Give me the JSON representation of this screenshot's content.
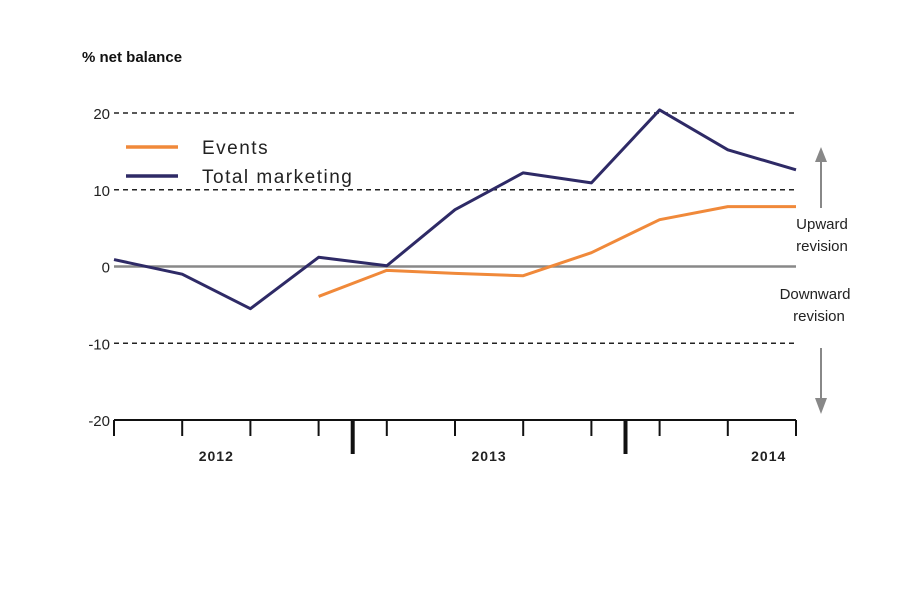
{
  "chart_data": {
    "type": "line",
    "ylabel": "% net balance",
    "ylim": [
      -20,
      20
    ],
    "yticks": [
      20,
      10,
      0,
      -10,
      -20
    ],
    "grid": "dashed horizontal at ±10 and ±20; solid zero line",
    "x": [
      "2012 Q1",
      "2012 Q2",
      "2012 Q3",
      "2012 Q4",
      "2013 Q1",
      "2013 Q2",
      "2013 Q3",
      "2013 Q4",
      "2014 Q1",
      "2014 Q2",
      "2014 Q3"
    ],
    "year_labels": [
      "2012",
      "2013",
      "2014"
    ],
    "legend_placement": "top-left",
    "series": [
      {
        "name": "Events",
        "color": "#f0893a",
        "values": [
          null,
          null,
          null,
          -3.9,
          -0.5,
          -0.9,
          -1.2,
          1.8,
          6.1,
          7.8,
          7.8
        ]
      },
      {
        "name": "Total marketing",
        "color": "#2e2a66",
        "values": [
          0.9,
          -1.0,
          -5.5,
          1.2,
          0.1,
          7.4,
          12.2,
          10.9,
          20.4,
          15.2,
          12.6
        ]
      }
    ],
    "annotations": {
      "upward": [
        "Upward",
        "revision"
      ],
      "downward": [
        "Downward",
        "revision"
      ]
    }
  }
}
